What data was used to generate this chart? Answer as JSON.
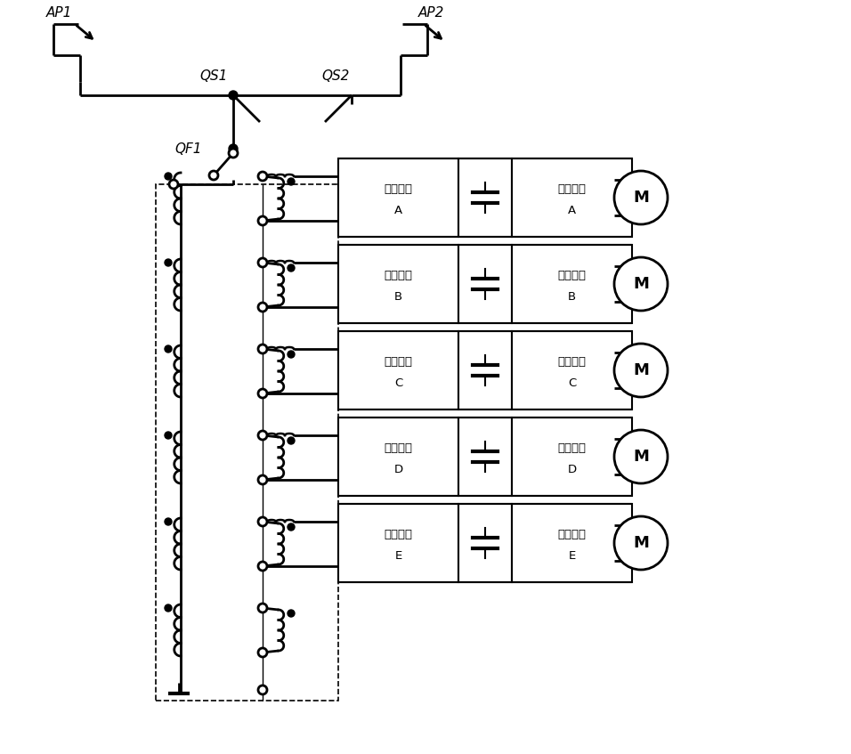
{
  "bg_color": "#ffffff",
  "rows": [
    "A",
    "B",
    "C",
    "D",
    "E"
  ],
  "figsize": [
    9.56,
    8.47
  ],
  "dpi": 100,
  "ap1_label": "AP1",
  "ap2_label": "AP2",
  "qs1_label": "QS1",
  "qs2_label": "QS2",
  "qf1_label": "QF1",
  "zhengliu_label": "整流单元",
  "nibian_label": "逆变单元",
  "motor_label": "M"
}
